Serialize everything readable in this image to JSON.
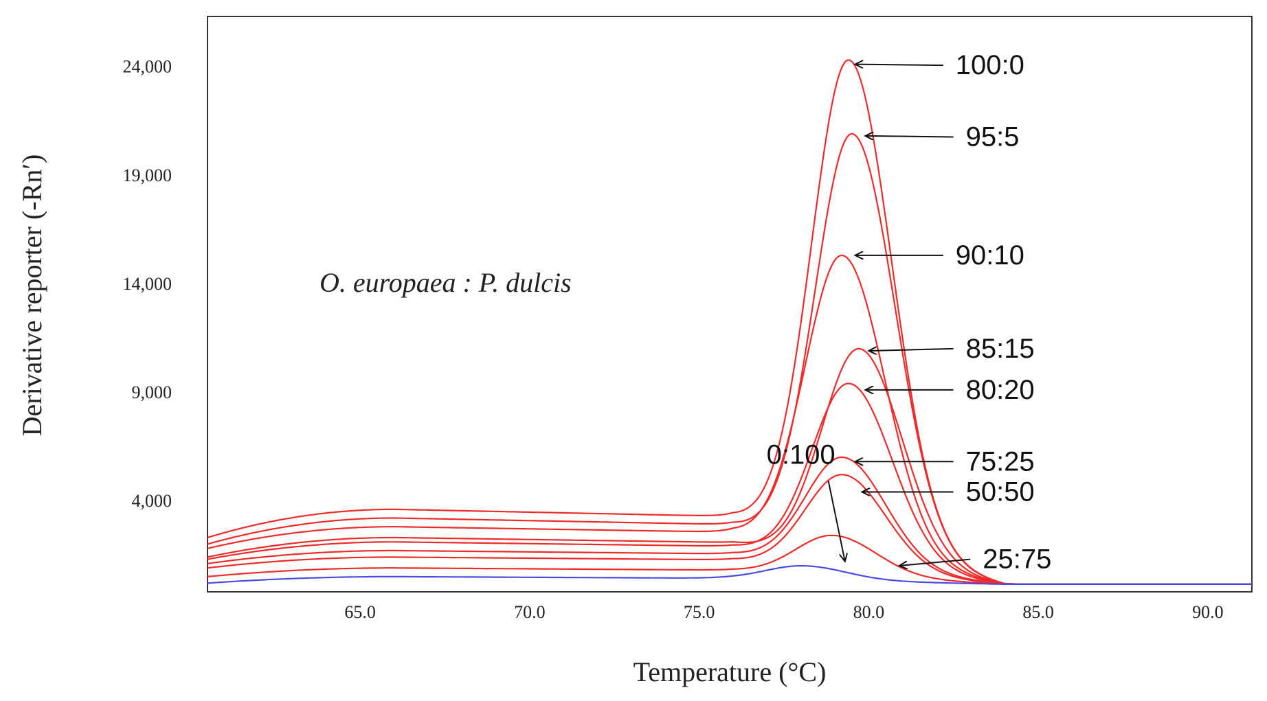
{
  "chart_data": {
    "type": "line",
    "title": "",
    "xlabel": "Temperature (°C)",
    "ylabel": "Derivative reporter (-Rn′)",
    "xlim": [
      60.5,
      91.3
    ],
    "ylim": [
      -200,
      26300
    ],
    "xticks": [
      65.0,
      70.0,
      75.0,
      80.0,
      85.0,
      90.0
    ],
    "xtick_labels": [
      "65.0",
      "70.0",
      "75.0",
      "80.0",
      "85.0",
      "90.0"
    ],
    "yticks": [
      4000,
      9000,
      14000,
      19000,
      24000
    ],
    "ytick_labels": [
      "4,000",
      "9,000",
      "14,000",
      "19,000",
      "24,000"
    ],
    "annotation": "O. europaea : P. dulcis",
    "colors": {
      "red": "#ee2a2a",
      "blue": "#4a4ae6",
      "arrow": "#111111",
      "frame": "#333333"
    },
    "series": [
      {
        "name": "100:0",
        "color": "#ee2a2a",
        "base": 2300,
        "plateau": 3600,
        "peak": 24300,
        "peak_x": 79.4,
        "label_pos": [
          82.4,
          24050
        ],
        "arrow_tip": [
          79.6,
          24100
        ]
      },
      {
        "name": "95:5",
        "color": "#ee2a2a",
        "base": 2000,
        "plateau": 3200,
        "peak": 20900,
        "peak_x": 79.5,
        "label_pos": [
          82.7,
          20750
        ],
        "arrow_tip": [
          79.9,
          20800
        ]
      },
      {
        "name": "90:10",
        "color": "#ee2a2a",
        "base": 1800,
        "plateau": 2800,
        "peak": 15300,
        "peak_x": 79.2,
        "label_pos": [
          82.4,
          15300
        ],
        "arrow_tip": [
          79.6,
          15300
        ]
      },
      {
        "name": "85:15",
        "color": "#ee2a2a",
        "base": 1400,
        "plateau": 2300,
        "peak": 11000,
        "peak_x": 79.7,
        "label_pos": [
          82.7,
          11000
        ],
        "arrow_tip": [
          80.0,
          10900
        ]
      },
      {
        "name": "80:20",
        "color": "#ee2a2a",
        "base": 1300,
        "plateau": 2100,
        "peak": 9400,
        "peak_x": 79.4,
        "label_pos": [
          82.7,
          9100
        ],
        "arrow_tip": [
          79.9,
          9100
        ]
      },
      {
        "name": "75:25",
        "color": "#ee2a2a",
        "base": 1100,
        "plateau": 1700,
        "peak": 6000,
        "peak_x": 79.2,
        "label_pos": [
          82.7,
          5800
        ],
        "arrow_tip": [
          79.6,
          5800
        ]
      },
      {
        "name": "50:50",
        "color": "#ee2a2a",
        "base": 900,
        "plateau": 1400,
        "peak": 5200,
        "peak_x": 79.2,
        "label_pos": [
          82.7,
          4400
        ],
        "arrow_tip": [
          79.8,
          4400
        ]
      },
      {
        "name": "25:75",
        "color": "#ee2a2a",
        "base": 500,
        "plateau": 900,
        "peak": 2400,
        "peak_x": 78.9,
        "label_pos": [
          83.2,
          1300
        ],
        "arrow_tip": [
          80.9,
          1000
        ]
      },
      {
        "name": "0:100",
        "color": "#4a4ae6",
        "base": 200,
        "plateau": 500,
        "peak": 1000,
        "peak_x": 78.0,
        "label_pos": [
          78.0,
          5700
        ],
        "arrow_tip": [
          79.3,
          1200
        ]
      }
    ]
  }
}
